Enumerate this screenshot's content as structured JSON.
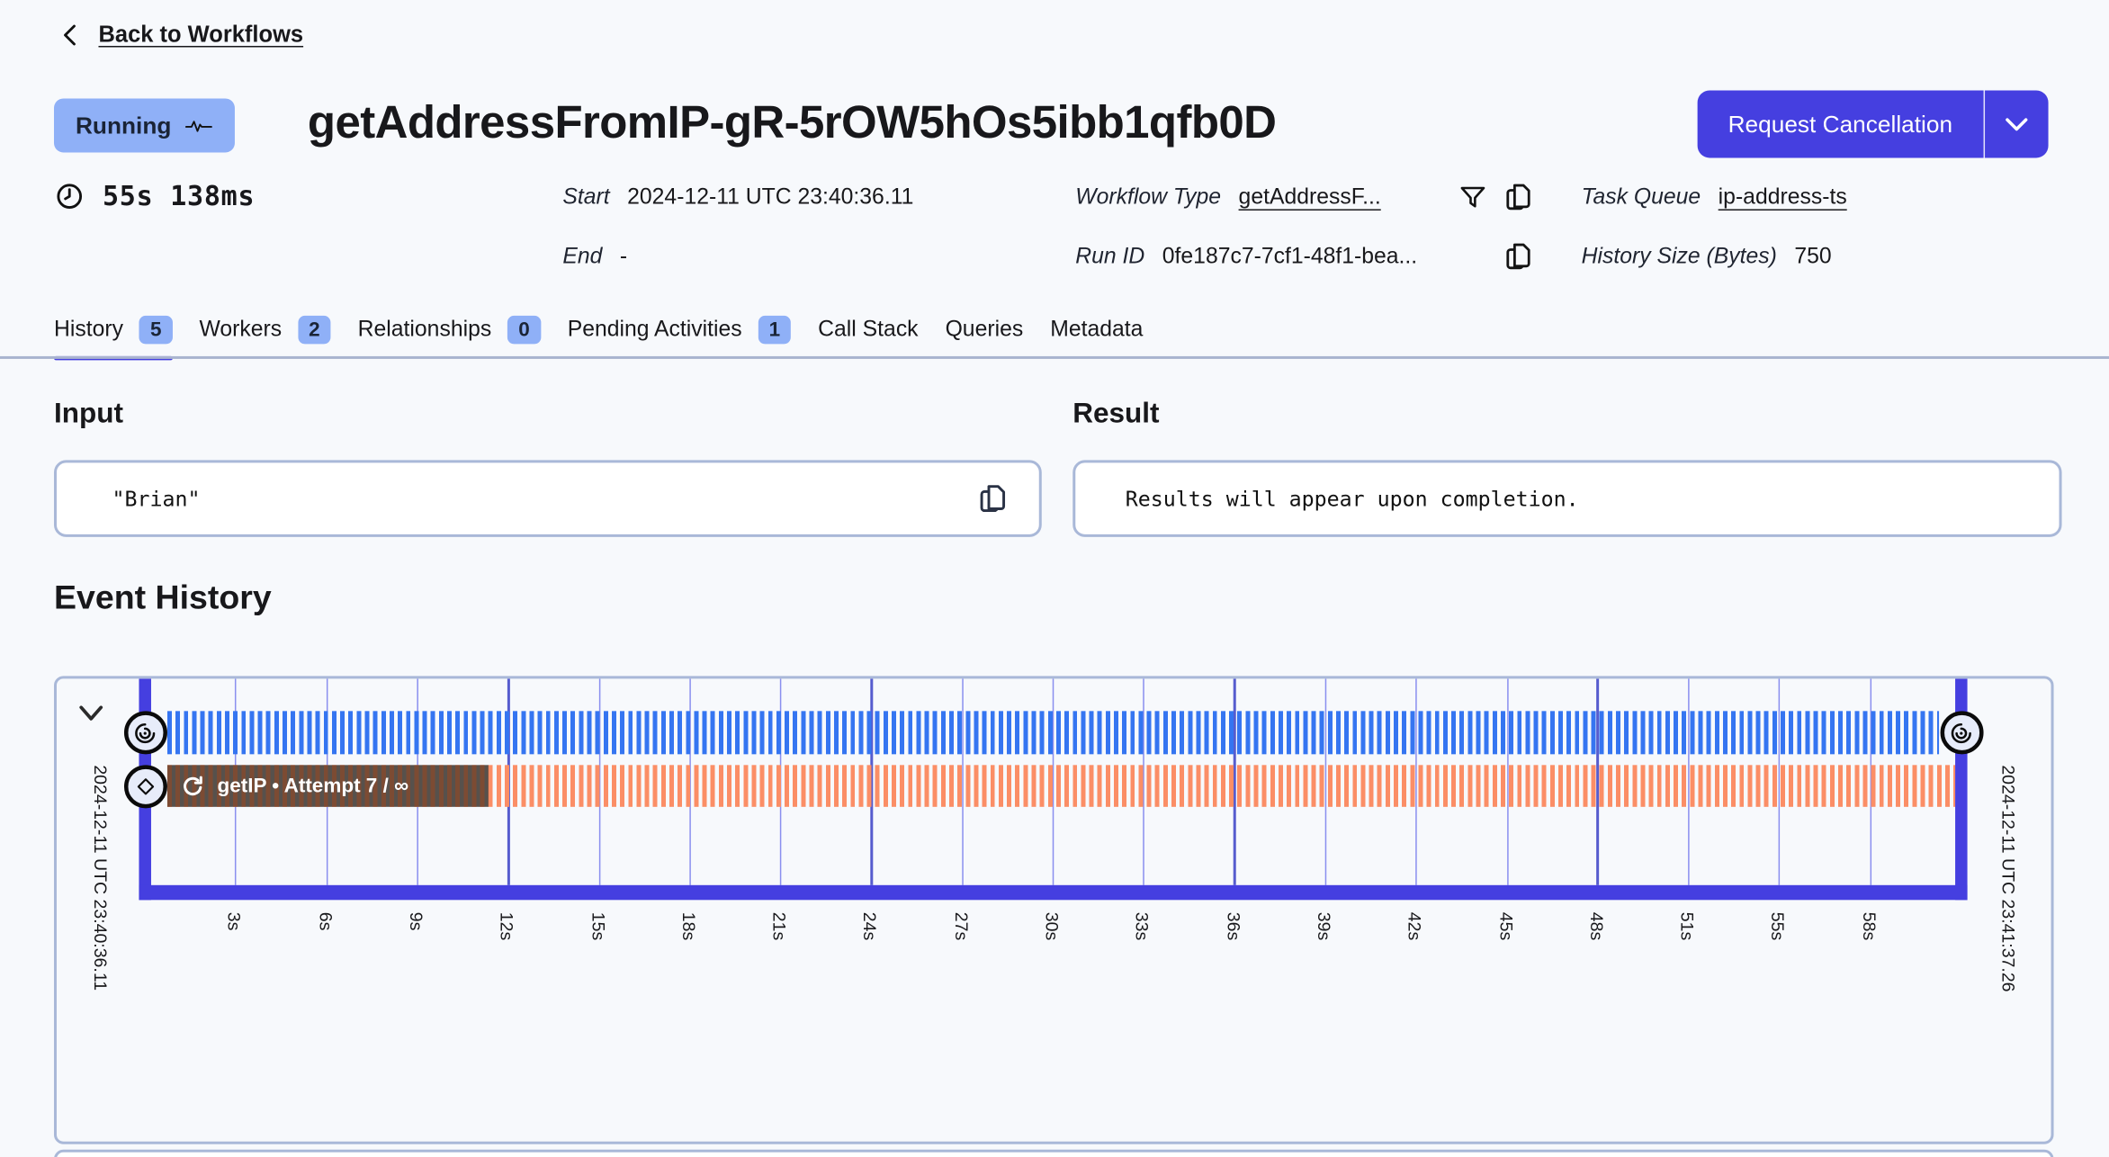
{
  "colors": {
    "page_bg": "#F7F9FC",
    "accent": "#453FE0",
    "status_badge_bg": "#8FB0F7",
    "blue_stripe": "#3575F1",
    "orange_stripe": "#FB8E66",
    "box_border": "#A9B8D8",
    "grid_line": "#8A8FEF",
    "grid_line_dark": "#565CCE",
    "pill_dark": "#57514C",
    "pill_brown": "#7C4B33"
  },
  "header": {
    "back_link": "Back to Workflows",
    "status": "Running",
    "workflow_title": "getAddressFromIP-gR-5rOW5hOs5ibb1qfb0D",
    "cancel_button": "Request Cancellation",
    "duration": "55s 138ms",
    "meta": {
      "start_label": "Start",
      "start_value": "2024-12-11 UTC 23:40:36.11",
      "end_label": "End",
      "end_value": "-",
      "workflow_type_label": "Workflow Type",
      "workflow_type_value": "getAddressF...",
      "run_id_label": "Run ID",
      "run_id_value": "0fe187c7-7cf1-48f1-bea...",
      "task_queue_label": "Task Queue",
      "task_queue_value": "ip-address-ts",
      "history_size_label": "History Size (Bytes)",
      "history_size_value": "750"
    }
  },
  "tabs": [
    {
      "label": "History",
      "badge": "5",
      "active": true
    },
    {
      "label": "Workers",
      "badge": "2",
      "active": false
    },
    {
      "label": "Relationships",
      "badge": "0",
      "active": false
    },
    {
      "label": "Pending Activities",
      "badge": "1",
      "active": false
    },
    {
      "label": "Call Stack",
      "badge": null,
      "active": false
    },
    {
      "label": "Queries",
      "badge": null,
      "active": false
    },
    {
      "label": "Metadata",
      "badge": null,
      "active": false
    }
  ],
  "input_section": {
    "title": "Input",
    "value": "\"Brian\""
  },
  "result_section": {
    "title": "Result",
    "value": "Results will appear upon completion."
  },
  "event_history": {
    "title": "Event History",
    "start_timestamp": "2024-12-11 UTC 23:40:36.11",
    "end_timestamp": "2024-12-11 UTC 23:41:37.26",
    "activity_label": "getIP • Attempt 7 / ∞",
    "rows": [
      {
        "name": "workflow-execution-running",
        "style": "blue-dashed"
      },
      {
        "name": "getIP-activity-retrying",
        "style": "orange-dashed"
      }
    ],
    "axis_ticks": [
      "3s",
      "6s",
      "9s",
      "12s",
      "15s",
      "18s",
      "21s",
      "24s",
      "27s",
      "30s",
      "33s",
      "36s",
      "39s",
      "42s",
      "45s",
      "48s",
      "51s",
      "55s",
      "58s"
    ]
  }
}
